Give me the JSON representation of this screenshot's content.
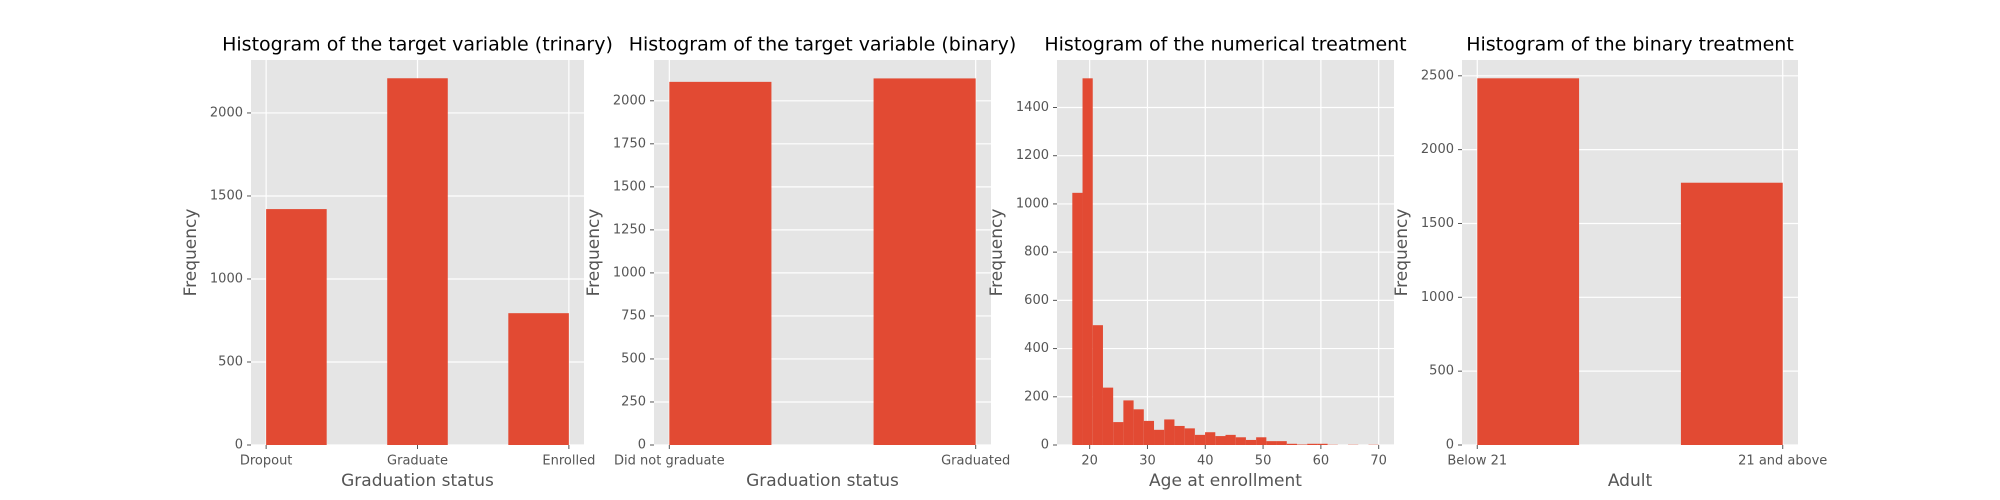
{
  "chart_data": [
    {
      "type": "histogram",
      "title": "Histogram of the target variable (trinary)",
      "xlabel": "Graduation status",
      "ylabel": "Frequency",
      "bins": [
        0,
        0.4,
        0.8,
        1.2,
        1.6,
        2
      ],
      "values": [
        1421,
        0,
        2209,
        0,
        794
      ],
      "color": "#E24A33",
      "xlim": [
        -0.1,
        2.1
      ],
      "xticks": [
        {
          "value": 0,
          "label": "Dropout"
        },
        {
          "value": 1,
          "label": "Graduate"
        },
        {
          "value": 2,
          "label": "Enrolled"
        }
      ],
      "ylim": [
        0,
        2319
      ],
      "yticks": [
        0,
        500,
        1000,
        1500,
        2000
      ],
      "grid": true
    },
    {
      "type": "histogram",
      "title": "Histogram of the target variable (binary)",
      "xlabel": "Graduation status",
      "ylabel": "Frequency",
      "bins": [
        0,
        0.3333,
        0.6667,
        1
      ],
      "values": [
        2110,
        0,
        2130
      ],
      "color": "#E24A33",
      "xlim": [
        -0.05,
        1.05
      ],
      "xticks": [
        {
          "value": 0,
          "label": "Did not graduate"
        },
        {
          "value": 1,
          "label": "Graduated"
        }
      ],
      "ylim": [
        0,
        2237
      ],
      "yticks": [
        0,
        250,
        500,
        750,
        1000,
        1250,
        1500,
        1750,
        2000
      ],
      "grid": true
    },
    {
      "type": "histogram",
      "title": "Histogram of the numerical treatment",
      "xlabel": "Age at enrollment",
      "ylabel": "Frequency",
      "bins": [
        17,
        18.7667,
        20.5333,
        22.3,
        24.0667,
        25.8333,
        27.6,
        29.3667,
        31.1333,
        32.9,
        34.6667,
        36.4333,
        38.2,
        39.9667,
        41.7333,
        43.5,
        45.2667,
        47.0333,
        48.8,
        50.5667,
        52.3333,
        54.1,
        55.8667,
        57.6333,
        59.4,
        61.1667,
        62.9333,
        64.7,
        66.4667,
        68.2333,
        70
      ],
      "values": [
        1046,
        1521,
        497,
        238,
        95,
        185,
        148,
        100,
        63,
        106,
        79,
        69,
        42,
        53,
        37,
        42,
        32,
        21,
        32,
        16,
        16,
        5,
        2,
        5,
        5,
        1,
        0,
        1,
        0,
        1
      ],
      "color": "#E24A33",
      "xlim": [
        14.35,
        72.65
      ],
      "xticks": [
        20,
        30,
        40,
        50,
        60,
        70
      ],
      "ylim": [
        0,
        1597
      ],
      "yticks": [
        0,
        200,
        400,
        600,
        800,
        1000,
        1200,
        1400
      ],
      "grid": true
    },
    {
      "type": "histogram",
      "title": "Histogram of the binary treatment",
      "xlabel": "Adult",
      "ylabel": "Frequency",
      "bins": [
        0,
        0.3333,
        0.6667,
        1
      ],
      "values": [
        2483,
        0,
        1776
      ],
      "color": "#E24A33",
      "xlim": [
        -0.05,
        1.05
      ],
      "xticks": [
        {
          "value": 0,
          "label": "Below 21"
        },
        {
          "value": 1,
          "label": "21 and above"
        }
      ],
      "ylim": [
        0,
        2607
      ],
      "yticks": [
        0,
        500,
        1000,
        1500,
        2000,
        2500
      ],
      "grid": true
    }
  ]
}
